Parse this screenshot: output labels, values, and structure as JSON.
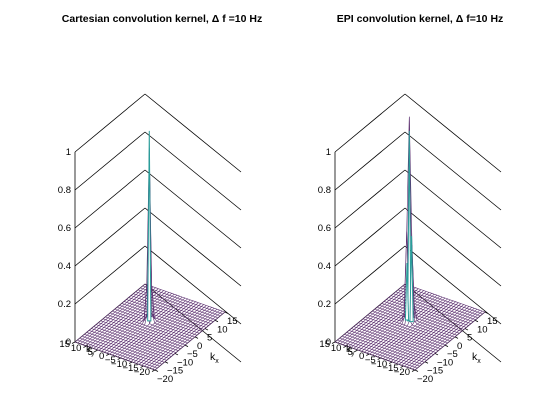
{
  "chart_data": [
    {
      "type": "surface",
      "title": "Cartesian convolution kernel, Δ f =10 Hz",
      "xlabel": "k",
      "xlabel_sub": "x",
      "ylabel": "k",
      "ylabel_sub": "y",
      "zlabel": "",
      "x_range": [
        -20,
        15
      ],
      "y_range": [
        -20,
        15
      ],
      "z_range": [
        0,
        1
      ],
      "x_ticks": [
        "−20",
        "−15",
        "−10",
        "−5",
        "0",
        "5",
        "10",
        "15"
      ],
      "y_ticks": [
        "−20",
        "−15",
        "−10",
        "−5",
        "0",
        "5",
        "10",
        "15"
      ],
      "z_ticks": [
        "0",
        "0.2",
        "0.4",
        "0.6",
        "0.8",
        "1"
      ],
      "grid": true,
      "peak": {
        "x": 0,
        "y": 0,
        "z": 1.0
      },
      "side_lobes": [],
      "baseline_z": 0.0
    },
    {
      "type": "surface",
      "title": "EPI convolution kernel, Δ f=10 Hz",
      "xlabel": "k",
      "xlabel_sub": "x",
      "ylabel": "k",
      "ylabel_sub": "y",
      "zlabel": "",
      "x_range": [
        -20,
        15
      ],
      "y_range": [
        -20,
        15
      ],
      "z_range": [
        0,
        1
      ],
      "x_ticks": [
        "−20",
        "−15",
        "−10",
        "−5",
        "0",
        "5",
        "10",
        "15"
      ],
      "y_ticks": [
        "−20",
        "−15",
        "−10",
        "−5",
        "0",
        "5",
        "10",
        "15"
      ],
      "z_ticks": [
        "0",
        "0.2",
        "0.4",
        "0.6",
        "0.8",
        "1"
      ],
      "grid": true,
      "peak": {
        "x": 0,
        "y": 0,
        "z": 1.0
      },
      "side_lobes": [
        {
          "x": 0,
          "y": -1,
          "z": 0.45
        },
        {
          "x": 0,
          "y": 1,
          "z": 0.3
        }
      ],
      "baseline_z": 0.0
    }
  ],
  "colors": {
    "mesh": "#5a2d6e",
    "peak": "#2a9d9a",
    "axis": "#000000"
  }
}
